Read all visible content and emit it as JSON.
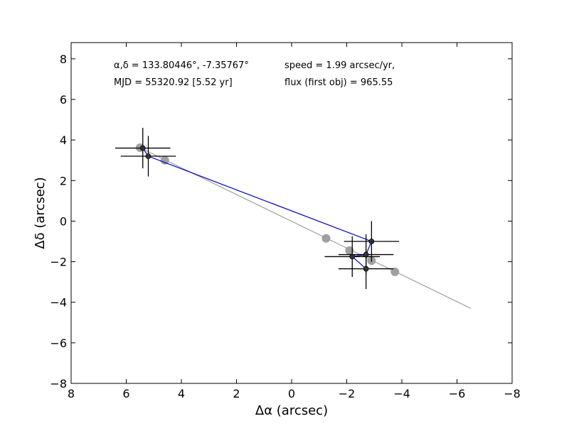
{
  "chart_data": {
    "type": "scatter",
    "title": "",
    "xlabel": "Δα (arcsec)",
    "ylabel": "Δδ (arcsec)",
    "xlim": [
      8,
      -8
    ],
    "ylim": [
      -8,
      8.8
    ],
    "xticks": [
      8,
      6,
      4,
      2,
      0,
      -2,
      -4,
      -6,
      -8
    ],
    "yticks": [
      -8,
      -6,
      -4,
      -2,
      0,
      2,
      4,
      6,
      8
    ],
    "xtick_labels": [
      "8",
      "6",
      "4",
      "2",
      "0",
      "−2",
      "−4",
      "−6",
      "−8"
    ],
    "ytick_labels": [
      "−8",
      "−6",
      "−4",
      "−2",
      "0",
      "2",
      "4",
      "6",
      "8"
    ],
    "grid": false,
    "annotations": {
      "coords": "α,δ = 133.80446°, -7.35767°",
      "speed": "speed = 1.99 arcsec/yr,",
      "mjd": "MJD = 55320.92 [5.52 yr]",
      "flux": "flux (first obj) = 965.55"
    },
    "colors": {
      "observed": "#000000",
      "observed_path": "#0000cc",
      "model": "#a0a0a0"
    },
    "model_line": {
      "x": [
        5.5,
        -6.5
      ],
      "y": [
        3.62,
        -4.3
      ]
    },
    "model_points": {
      "x": [
        5.5,
        4.6,
        -1.25,
        -2.1,
        -2.9,
        -3.75
      ],
      "y": [
        3.62,
        3.0,
        -0.85,
        -1.45,
        -1.95,
        -2.5
      ]
    },
    "observed": {
      "x": [
        5.4,
        5.2,
        -2.9,
        -2.7,
        -2.2,
        -2.7
      ],
      "y": [
        3.6,
        3.2,
        -1.0,
        -1.65,
        -1.75,
        -2.35
      ],
      "xerr": [
        1.0,
        1.0,
        1.0,
        1.0,
        1.0,
        1.0
      ],
      "yerr": [
        1.0,
        1.0,
        1.0,
        1.0,
        1.0,
        1.0
      ]
    }
  }
}
